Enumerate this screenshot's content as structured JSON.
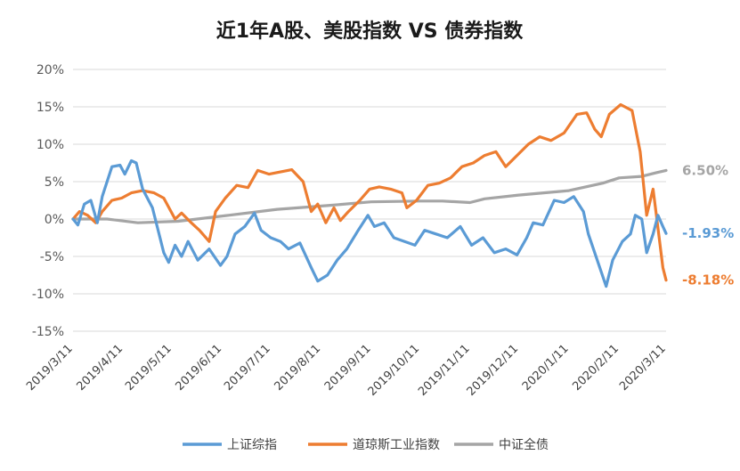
{
  "chart_data": {
    "type": "line",
    "title": "近1年A股、美股指数 VS 债券指数",
    "xlabel": "",
    "ylabel": "",
    "ylim": [
      -15,
      20
    ],
    "yticks": [
      "20%",
      "15%",
      "10%",
      "5%",
      "0%",
      "-5%",
      "-10%",
      "-15%"
    ],
    "ytick_values": [
      20,
      15,
      10,
      5,
      0,
      -5,
      -10,
      -15
    ],
    "xticks": [
      "2019/3/11",
      "2019/4/11",
      "2019/5/11",
      "2019/6/11",
      "2019/7/11",
      "2019/8/11",
      "2019/9/11",
      "2019/10/11",
      "2019/11/11",
      "2019/12/11",
      "2020/1/11",
      "2020/2/11",
      "2020/3/11"
    ],
    "grid": true,
    "legend_position": "bottom",
    "series": [
      {
        "name": "上证综指",
        "color": "#5B9BD5",
        "end_label": "-1.93%",
        "points": [
          [
            "2019/3/11",
            0.0
          ],
          [
            "2019/3/14",
            -0.8
          ],
          [
            "2019/3/18",
            2.0
          ],
          [
            "2019/3/22",
            2.5
          ],
          [
            "2019/3/26",
            -0.5
          ],
          [
            "2019/3/29",
            3.0
          ],
          [
            "2019/4/4",
            7.0
          ],
          [
            "2019/4/9",
            7.2
          ],
          [
            "2019/4/12",
            6.0
          ],
          [
            "2019/4/16",
            7.8
          ],
          [
            "2019/4/19",
            7.5
          ],
          [
            "2019/4/23",
            4.0
          ],
          [
            "2019/4/29",
            1.5
          ],
          [
            "2019/5/6",
            -4.5
          ],
          [
            "2019/5/9",
            -5.8
          ],
          [
            "2019/5/13",
            -3.5
          ],
          [
            "2019/5/17",
            -5.0
          ],
          [
            "2019/5/21",
            -3.0
          ],
          [
            "2019/5/27",
            -5.5
          ],
          [
            "2019/6/3",
            -4.0
          ],
          [
            "2019/6/10",
            -6.2
          ],
          [
            "2019/6/14",
            -5.0
          ],
          [
            "2019/6/19",
            -2.0
          ],
          [
            "2019/6/25",
            -1.0
          ],
          [
            "2019/7/1",
            0.8
          ],
          [
            "2019/7/5",
            -1.5
          ],
          [
            "2019/7/11",
            -2.5
          ],
          [
            "2019/7/17",
            -3.0
          ],
          [
            "2019/7/22",
            -4.0
          ],
          [
            "2019/7/29",
            -3.2
          ],
          [
            "2019/8/5",
            -6.5
          ],
          [
            "2019/8/9",
            -8.3
          ],
          [
            "2019/8/15",
            -7.5
          ],
          [
            "2019/8/21",
            -5.5
          ],
          [
            "2019/8/27",
            -4.0
          ],
          [
            "2019/9/3",
            -1.5
          ],
          [
            "2019/9/9",
            0.5
          ],
          [
            "2019/9/13",
            -1.0
          ],
          [
            "2019/9/19",
            -0.5
          ],
          [
            "2019/9/25",
            -2.5
          ],
          [
            "2019/10/8",
            -3.5
          ],
          [
            "2019/10/14",
            -1.5
          ],
          [
            "2019/10/21",
            -2.0
          ],
          [
            "2019/10/28",
            -2.5
          ],
          [
            "2019/11/5",
            -1.0
          ],
          [
            "2019/11/12",
            -3.5
          ],
          [
            "2019/11/19",
            -2.5
          ],
          [
            "2019/11/26",
            -4.5
          ],
          [
            "2019/12/3",
            -4.0
          ],
          [
            "2019/12/10",
            -4.8
          ],
          [
            "2019/12/16",
            -2.5
          ],
          [
            "2019/12/20",
            -0.5
          ],
          [
            "2019/12/26",
            -0.8
          ],
          [
            "2020/1/2",
            2.5
          ],
          [
            "2020/1/8",
            2.2
          ],
          [
            "2020/1/14",
            3.0
          ],
          [
            "2020/1/20",
            1.0
          ],
          [
            "2020/1/23",
            -2.0
          ],
          [
            "2020/2/3",
            -9.0
          ],
          [
            "2020/2/7",
            -5.5
          ],
          [
            "2020/2/13",
            -3.0
          ],
          [
            "2020/2/18",
            -2.0
          ],
          [
            "2020/2/21",
            0.5
          ],
          [
            "2020/2/25",
            0.0
          ],
          [
            "2020/2/28",
            -4.5
          ],
          [
            "2020/3/3",
            -2.0
          ],
          [
            "2020/3/6",
            0.5
          ],
          [
            "2020/3/9",
            -1.0
          ],
          [
            "2020/3/11",
            -1.93
          ]
        ]
      },
      {
        "name": "道琼斯工业指数",
        "color": "#ED7D31",
        "end_label": "-8.18%",
        "points": [
          [
            "2019/3/11",
            0.0
          ],
          [
            "2019/3/15",
            1.0
          ],
          [
            "2019/3/20",
            0.5
          ],
          [
            "2019/3/25",
            -0.5
          ],
          [
            "2019/3/29",
            1.0
          ],
          [
            "2019/4/4",
            2.5
          ],
          [
            "2019/4/10",
            2.8
          ],
          [
            "2019/4/16",
            3.5
          ],
          [
            "2019/4/23",
            3.8
          ],
          [
            "2019/4/30",
            3.5
          ],
          [
            "2019/5/6",
            2.8
          ],
          [
            "2019/5/13",
            0.0
          ],
          [
            "2019/5/17",
            0.8
          ],
          [
            "2019/5/23",
            -0.5
          ],
          [
            "2019/5/28",
            -1.5
          ],
          [
            "2019/6/3",
            -3.0
          ],
          [
            "2019/6/7",
            1.0
          ],
          [
            "2019/6/13",
            2.8
          ],
          [
            "2019/6/20",
            4.5
          ],
          [
            "2019/6/27",
            4.2
          ],
          [
            "2019/7/3",
            6.5
          ],
          [
            "2019/7/10",
            6.0
          ],
          [
            "2019/7/17",
            6.3
          ],
          [
            "2019/7/24",
            6.6
          ],
          [
            "2019/7/31",
            5.0
          ],
          [
            "2019/8/5",
            1.0
          ],
          [
            "2019/8/9",
            2.0
          ],
          [
            "2019/8/14",
            -0.5
          ],
          [
            "2019/8/19",
            1.5
          ],
          [
            "2019/8/23",
            -0.2
          ],
          [
            "2019/8/28",
            1.0
          ],
          [
            "2019/9/4",
            2.5
          ],
          [
            "2019/9/10",
            4.0
          ],
          [
            "2019/9/16",
            4.3
          ],
          [
            "2019/9/23",
            4.0
          ],
          [
            "2019/9/30",
            3.5
          ],
          [
            "2019/10/3",
            1.5
          ],
          [
            "2019/10/9",
            2.5
          ],
          [
            "2019/10/16",
            4.5
          ],
          [
            "2019/10/23",
            4.8
          ],
          [
            "2019/10/30",
            5.5
          ],
          [
            "2019/11/6",
            7.0
          ],
          [
            "2019/11/13",
            7.5
          ],
          [
            "2019/11/20",
            8.5
          ],
          [
            "2019/11/27",
            9.0
          ],
          [
            "2019/12/3",
            7.0
          ],
          [
            "2019/12/10",
            8.5
          ],
          [
            "2019/12/17",
            10.0
          ],
          [
            "2019/12/24",
            11.0
          ],
          [
            "2019/12/31",
            10.5
          ],
          [
            "2020/1/8",
            11.5
          ],
          [
            "2020/1/16",
            14.0
          ],
          [
            "2020/1/22",
            14.2
          ],
          [
            "2020/1/27",
            12.0
          ],
          [
            "2020/1/31",
            11.0
          ],
          [
            "2020/2/5",
            14.0
          ],
          [
            "2020/2/12",
            15.3
          ],
          [
            "2020/2/19",
            14.5
          ],
          [
            "2020/2/24",
            9.0
          ],
          [
            "2020/2/28",
            0.5
          ],
          [
            "2020/3/3",
            4.0
          ],
          [
            "2020/3/5",
            0.5
          ],
          [
            "2020/3/9",
            -6.5
          ],
          [
            "2020/3/11",
            -8.18
          ]
        ]
      },
      {
        "name": "中证全债",
        "color": "#A5A5A5",
        "end_label": "6.50%",
        "points": [
          [
            "2019/3/11",
            0.0
          ],
          [
            "2019/4/1",
            0.0
          ],
          [
            "2019/4/20",
            -0.5
          ],
          [
            "2019/5/15",
            -0.3
          ],
          [
            "2019/6/15",
            0.5
          ],
          [
            "2019/7/15",
            1.3
          ],
          [
            "2019/8/15",
            1.8
          ],
          [
            "2019/9/11",
            2.3
          ],
          [
            "2019/10/11",
            2.4
          ],
          [
            "2019/10/25",
            2.4
          ],
          [
            "2019/11/11",
            2.2
          ],
          [
            "2019/11/20",
            2.7
          ],
          [
            "2019/12/11",
            3.2
          ],
          [
            "2020/1/11",
            3.8
          ],
          [
            "2020/2/1",
            4.8
          ],
          [
            "2020/2/11",
            5.5
          ],
          [
            "2020/2/25",
            5.7
          ],
          [
            "2020/3/5",
            6.2
          ],
          [
            "2020/3/11",
            6.5
          ]
        ]
      }
    ]
  }
}
